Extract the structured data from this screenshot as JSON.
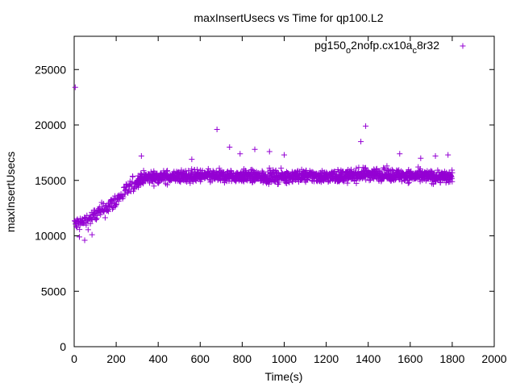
{
  "chart_data": {
    "type": "scatter",
    "title": "maxInsertUsecs vs Time for qp100.L2",
    "xlabel": "Time(s)",
    "ylabel": "maxInsertUsecs",
    "xlim": [
      0,
      2000
    ],
    "ylim": [
      0,
      28000
    ],
    "x_ticks": [
      "0",
      "200",
      "400",
      "600",
      "800",
      "1000",
      "1200",
      "1400",
      "1600",
      "1800",
      "2000"
    ],
    "y_ticks": [
      "0",
      "5000",
      "10000",
      "15000",
      "20000",
      "25000"
    ],
    "grid": false,
    "legend_position": "top-right",
    "marker": "plus",
    "series": [
      {
        "name_parts": [
          "pg150",
          "o",
          "2nofp.cx10a",
          "c",
          "8r32"
        ],
        "color": "#9400d3",
        "trend": {
          "x": [
            0,
            40,
            80,
            120,
            160,
            200,
            240,
            280,
            320,
            400,
            500,
            600,
            700,
            800,
            900,
            1000,
            1100,
            1200,
            1300,
            1400,
            1500,
            1600,
            1700,
            1800
          ],
          "y": [
            11000,
            11200,
            11600,
            12100,
            12600,
            13200,
            13900,
            14600,
            15200,
            15300,
            15350,
            15400,
            15350,
            15400,
            15300,
            15350,
            15400,
            15350,
            15400,
            15600,
            15500,
            15400,
            15350,
            15300
          ]
        },
        "outliers": [
          {
            "x": 5,
            "y": 23400
          },
          {
            "x": 680,
            "y": 19600
          },
          {
            "x": 1388,
            "y": 19900
          },
          {
            "x": 1365,
            "y": 18500
          },
          {
            "x": 740,
            "y": 18000
          },
          {
            "x": 860,
            "y": 17800
          },
          {
            "x": 930,
            "y": 17600
          },
          {
            "x": 790,
            "y": 17400
          },
          {
            "x": 1720,
            "y": 17200
          },
          {
            "x": 1780,
            "y": 17300
          },
          {
            "x": 320,
            "y": 17200
          },
          {
            "x": 1550,
            "y": 17400
          },
          {
            "x": 1000,
            "y": 17300
          },
          {
            "x": 50,
            "y": 9600
          },
          {
            "x": 25,
            "y": 9900
          },
          {
            "x": 85,
            "y": 10100
          },
          {
            "x": 1650,
            "y": 17000
          },
          {
            "x": 560,
            "y": 16900
          }
        ]
      }
    ]
  }
}
